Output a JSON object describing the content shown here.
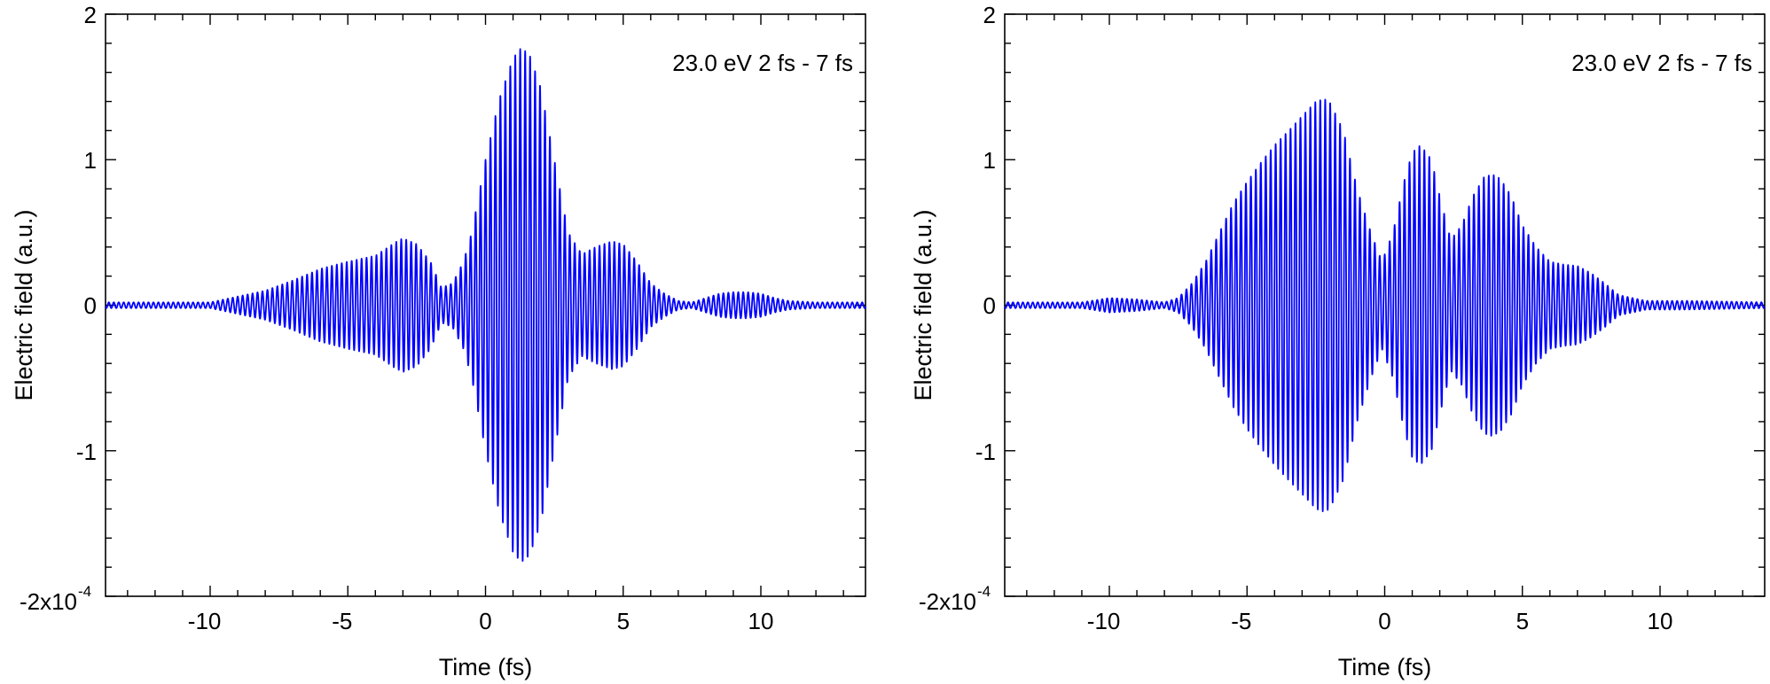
{
  "chart_data": [
    {
      "type": "line",
      "annotation": "23.0 eV  2 fs - 7 fs",
      "xlabel": "Time (fs)",
      "ylabel": "Electric field (a.u.)",
      "xlim": [
        -13.8,
        13.8
      ],
      "ylim": [
        -2,
        2
      ],
      "x_ticks": [
        -10,
        -5,
        0,
        5,
        10
      ],
      "x_tick_labels": [
        "-10",
        "-5",
        "0",
        "5",
        "10"
      ],
      "y_ticks": [
        -2,
        -1,
        0,
        1,
        2
      ],
      "y_tick_labels": [
        "-2x10",
        "-1",
        "0",
        "1",
        "2"
      ],
      "y_scale_exponent": "-4",
      "carrier_period_fs": 0.18,
      "line_color": "#0000ff",
      "envelope": {
        "x": [
          -13.8,
          -12,
          -10,
          -8,
          -7,
          -6,
          -5,
          -4,
          -3.3,
          -3,
          -2.5,
          -2,
          -1.6,
          -1.2,
          -0.8,
          -0.5,
          0,
          0.5,
          1,
          1.3,
          1.6,
          2,
          2.5,
          3,
          3.5,
          4,
          4.6,
          5,
          5.5,
          6,
          6.5,
          7,
          7.5,
          8,
          8.5,
          9,
          9.5,
          10,
          10.5,
          11,
          12,
          13.8
        ],
        "y": [
          0.02,
          0.02,
          0.02,
          0.1,
          0.17,
          0.25,
          0.3,
          0.34,
          0.43,
          0.46,
          0.42,
          0.3,
          0.12,
          0.15,
          0.3,
          0.5,
          1.0,
          1.42,
          1.7,
          1.77,
          1.72,
          1.5,
          1.0,
          0.5,
          0.35,
          0.4,
          0.44,
          0.42,
          0.3,
          0.15,
          0.08,
          0.03,
          0.02,
          0.05,
          0.08,
          0.09,
          0.09,
          0.08,
          0.05,
          0.03,
          0.02,
          0.02
        ]
      }
    },
    {
      "type": "line",
      "annotation": "23.0 eV  2 fs - 7 fs",
      "xlabel": "Time (fs)",
      "ylabel": "Electric field (a.u.)",
      "xlim": [
        -13.8,
        13.8
      ],
      "ylim": [
        -2,
        2
      ],
      "x_ticks": [
        -10,
        -5,
        0,
        5,
        10
      ],
      "x_tick_labels": [
        "-10",
        "-5",
        "0",
        "5",
        "10"
      ],
      "y_ticks": [
        -2,
        -1,
        0,
        1,
        2
      ],
      "y_tick_labels": [
        "-2x10",
        "-1",
        "0",
        "1",
        "2"
      ],
      "y_scale_exponent": "-4",
      "carrier_period_fs": 0.18,
      "line_color": "#0000ff",
      "envelope": {
        "x": [
          -13.8,
          -11,
          -10,
          -9,
          -8,
          -7.5,
          -7,
          -6.5,
          -6,
          -5.5,
          -5,
          -4.5,
          -4,
          -3.5,
          -3,
          -2.5,
          -2.2,
          -2,
          -1.5,
          -1,
          -0.5,
          -0.1,
          0.3,
          0.7,
          1,
          1.3,
          1.7,
          2,
          2.4,
          2.8,
          3.2,
          3.6,
          3.9,
          4.2,
          4.6,
          5,
          5.5,
          6,
          6.5,
          7,
          7.5,
          8,
          8.5,
          9,
          9.5,
          10,
          11,
          13.8
        ],
        "y": [
          0.02,
          0.02,
          0.05,
          0.04,
          0.02,
          0.05,
          0.15,
          0.3,
          0.5,
          0.7,
          0.85,
          0.98,
          1.1,
          1.2,
          1.3,
          1.4,
          1.42,
          1.4,
          1.2,
          0.8,
          0.5,
          0.3,
          0.5,
          0.85,
          1.05,
          1.1,
          1.0,
          0.75,
          0.45,
          0.55,
          0.75,
          0.88,
          0.9,
          0.87,
          0.75,
          0.55,
          0.4,
          0.3,
          0.28,
          0.27,
          0.22,
          0.15,
          0.07,
          0.05,
          0.03,
          0.03,
          0.03,
          0.02
        ]
      }
    }
  ]
}
